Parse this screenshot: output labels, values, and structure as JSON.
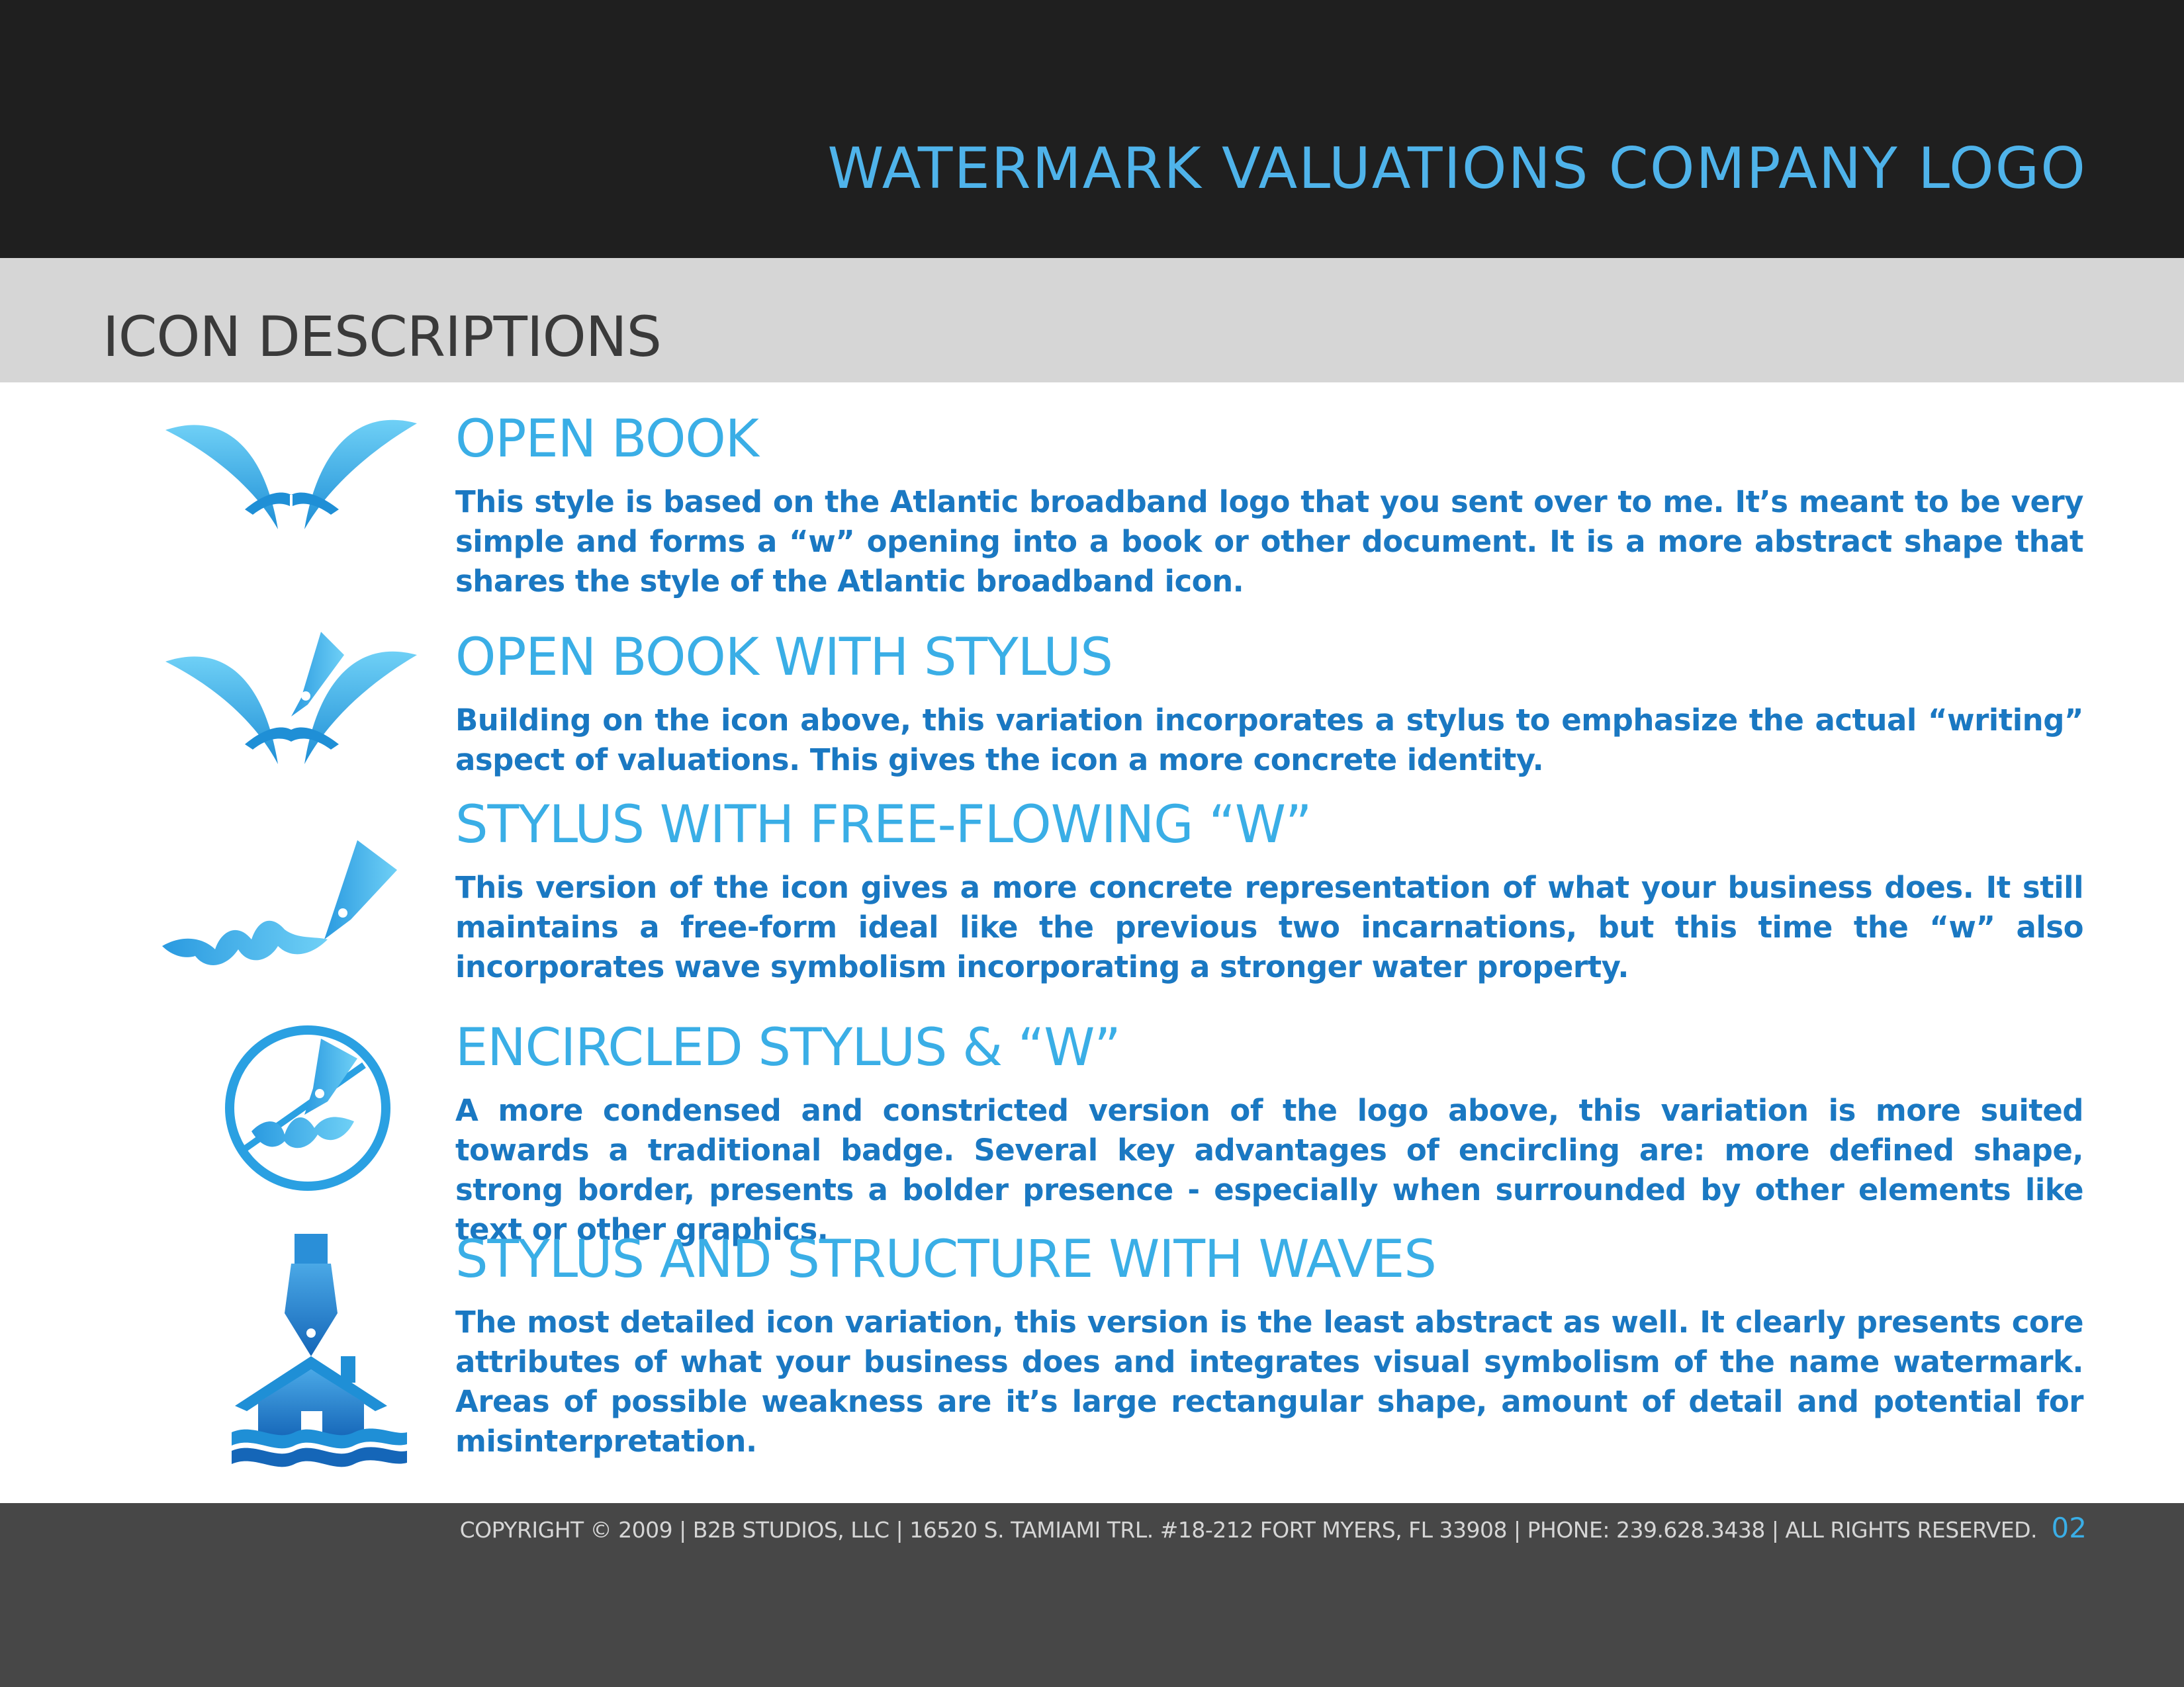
{
  "header": {
    "title": "WATERMARK VALUATIONS COMPANY LOGO"
  },
  "section": {
    "title": "ICON DESCRIPTIONS"
  },
  "entries": [
    {
      "icon": "open-book-icon",
      "title": "OPEN BOOK",
      "body": "This style is based on the Atlantic broadband logo that you sent over to me.  It’s meant to be very simple and  forms a “w” opening into a book or other document.  It is a more abstract shape that shares the style of the Atlantic broadband icon."
    },
    {
      "icon": "open-book-stylus-icon",
      "title": "OPEN BOOK WITH STYLUS",
      "body": "Building on the icon above, this variation incorporates a stylus to emphasize the actual “writing” aspect of valuations.  This gives the icon a more concrete identity."
    },
    {
      "icon": "stylus-wave-w-icon",
      "title": "STYLUS WITH FREE-FLOWING “W”",
      "body": "This version of the icon gives a more concrete representation of what your business does.  It still maintains a free-form ideal like the previous two incarnations, but this time the “w” also incorporates wave symbolism incorporating a stronger water property."
    },
    {
      "icon": "encircled-stylus-icon",
      "title": "ENCIRCLED STYLUS & “W”",
      "body": "A more condensed and constricted version of the logo above, this variation is more suited towards a traditional badge.  Several key advantages of encircling are:  more defined shape, strong border, presents a bolder presence - especially when surrounded by other elements like text or other graphics."
    },
    {
      "icon": "stylus-house-waves-icon",
      "title": "STYLUS AND STRUCTURE WITH WAVES",
      "body": "The most detailed icon variation, this version is the least abstract as well.  It clearly presents core attributes of what your business does and integrates visual symbolism of the name watermark.  Areas of possible weakness are it’s large rectangular shape, amount of detail and potential for misinterpretation."
    }
  ],
  "footer": {
    "copyright": "COPYRIGHT © 2009 | B2B STUDIOS, LLC | 16520 S. TAMIAMI TRL. #18-212 FORT MYERS, FL  33908 | PHONE:  239.628.3438 | ALL RIGHTS RESERVED.",
    "page_number": "02"
  },
  "colors": {
    "accent": "#3aaee6",
    "body_text": "#1a78c2",
    "top_bar": "#1f1f1f",
    "section_band": "#d6d6d6",
    "footer_bar": "#474747"
  }
}
